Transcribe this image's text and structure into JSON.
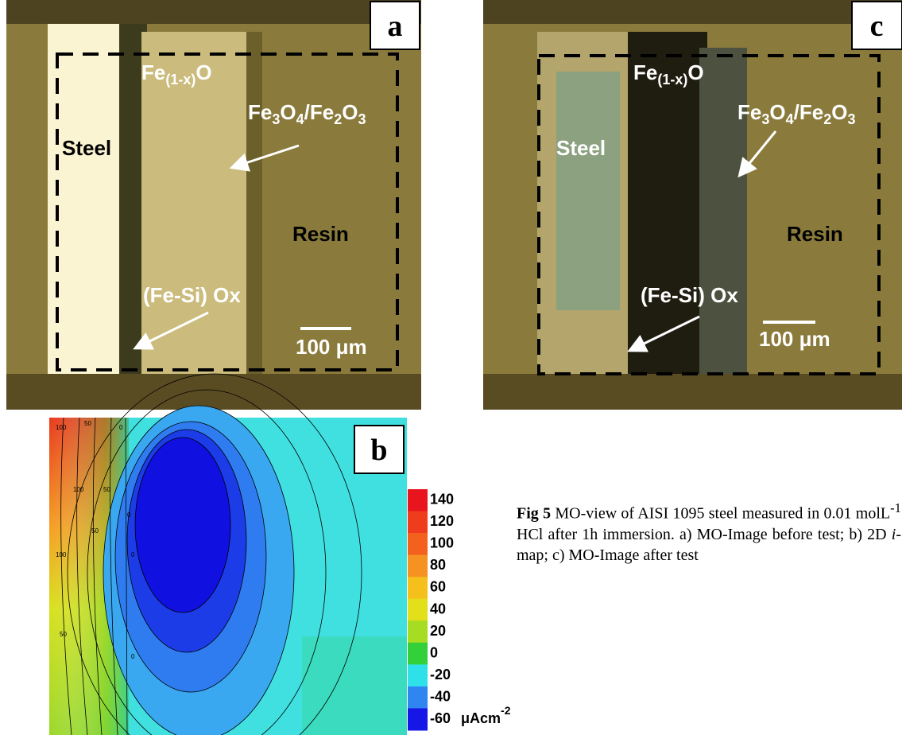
{
  "panels": [
    {
      "letter": "a",
      "oxide": [
        "Fe",
        "(1-x)",
        "O"
      ],
      "outer_oxide": [
        "Fe",
        "3",
        "O",
        "4",
        "/Fe",
        "2",
        "O",
        "3"
      ],
      "steel": "Steel",
      "resin": "Resin",
      "interface": "(Fe-Si) Ox",
      "scale": "100 μm"
    },
    {
      "letter": "b"
    },
    {
      "letter": "c",
      "oxide": [
        "Fe",
        "(1-x)",
        "O"
      ],
      "outer_oxide": [
        "Fe",
        "3",
        "O",
        "4",
        "/Fe",
        "2",
        "O",
        "3"
      ],
      "steel": "Steel",
      "resin": "Resin",
      "interface": "(Fe-Si) Ox",
      "scale": "100 μm"
    }
  ],
  "contour_labels": [
    100,
    50,
    0,
    100,
    50,
    0,
    100,
    50,
    0,
    50,
    0
  ],
  "colorbar": {
    "ticks": [
      140,
      120,
      100,
      80,
      60,
      40,
      20,
      0,
      -20,
      -40,
      -60
    ],
    "colors": [
      "#e8141e",
      "#ee3c1c",
      "#f2621e",
      "#f59222",
      "#f5c01c",
      "#e2e01a",
      "#a6dc22",
      "#34d03a",
      "#2ee0e8",
      "#2f86f0",
      "#1616e6"
    ],
    "unit": [
      "μAcm",
      "-2"
    ]
  },
  "caption": [
    "Fig 5",
    " MO-view of AISI 1095 steel measured in 0.01 molL",
    "-1",
    " HCl after 1h immersion. a) MO-Image before test; b) 2D ",
    "i",
    "-map; c) MO-Image after test"
  ]
}
